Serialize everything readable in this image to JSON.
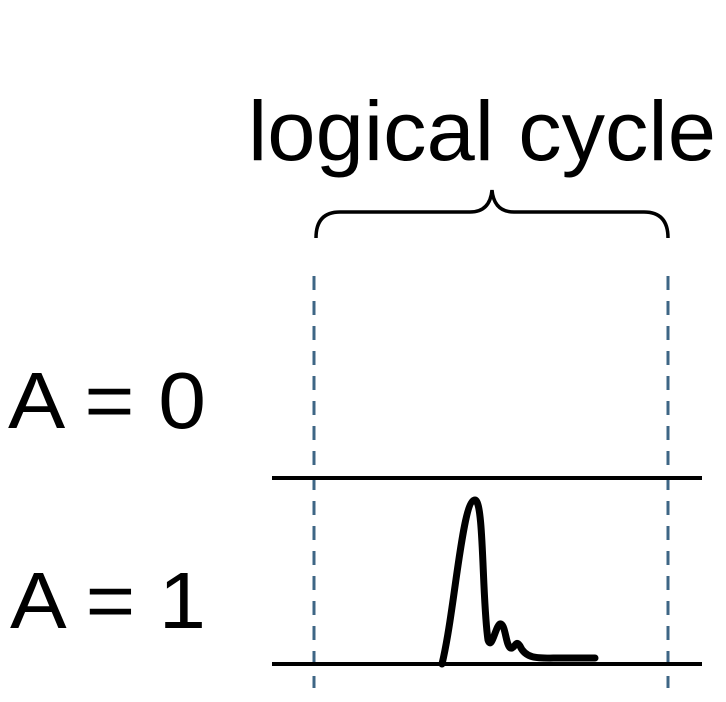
{
  "title": "logical cycle",
  "rows": [
    {
      "label": "A = 0"
    },
    {
      "label": "A = 1"
    }
  ]
}
